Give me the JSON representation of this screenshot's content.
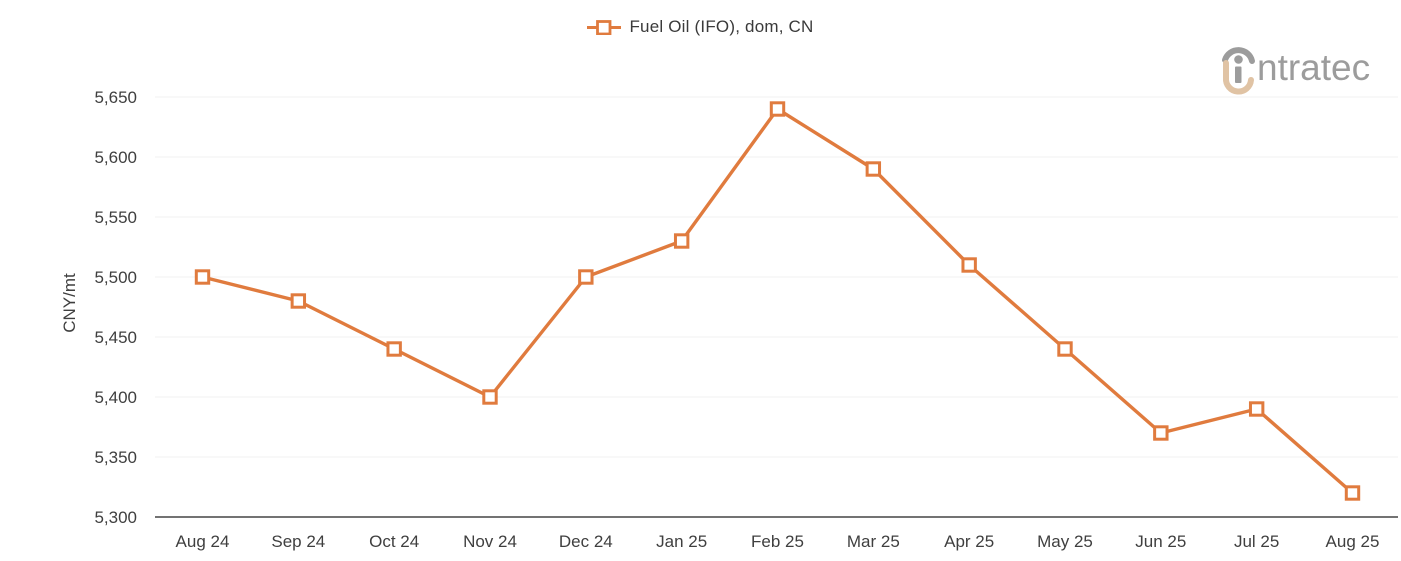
{
  "legend": {
    "label": "Fuel Oil (IFO), dom, CN"
  },
  "logo": {
    "wordmark": "ntratec"
  },
  "colors": {
    "accent": "#e07b3e",
    "marker_fill": "#ffffff",
    "tick_text": "#3f3f3f",
    "gridline": "#f2f2f2",
    "axis_line": "#737373",
    "logo_gray": "#9c9c9c",
    "logo_tan": "#e0c3a4",
    "background": "#ffffff"
  },
  "chart_data": {
    "type": "line",
    "title": "",
    "xlabel": "",
    "ylabel": "CNY/mt",
    "categories": [
      "Aug 24",
      "Sep 24",
      "Oct 24",
      "Nov 24",
      "Dec 24",
      "Jan 25",
      "Feb 25",
      "Mar 25",
      "Apr 25",
      "May 25",
      "Jun 25",
      "Jul 25",
      "Aug 25"
    ],
    "series": [
      {
        "name": "Fuel Oil (IFO), dom, CN",
        "values": [
          5500,
          5480,
          5440,
          5400,
          5500,
          5530,
          5640,
          5590,
          5510,
          5440,
          5370,
          5390,
          5320
        ],
        "color": "#e07b3e",
        "marker": "hollow-square"
      }
    ],
    "ylim": [
      5300,
      5650
    ],
    "ytick_step": 50,
    "ytick_labels": [
      "5,300",
      "5,350",
      "5,400",
      "5,450",
      "5,500",
      "5,550",
      "5,600",
      "5,650"
    ],
    "grid": "horizontal",
    "legend_position": "top-center",
    "unit": "CNY/mt"
  }
}
